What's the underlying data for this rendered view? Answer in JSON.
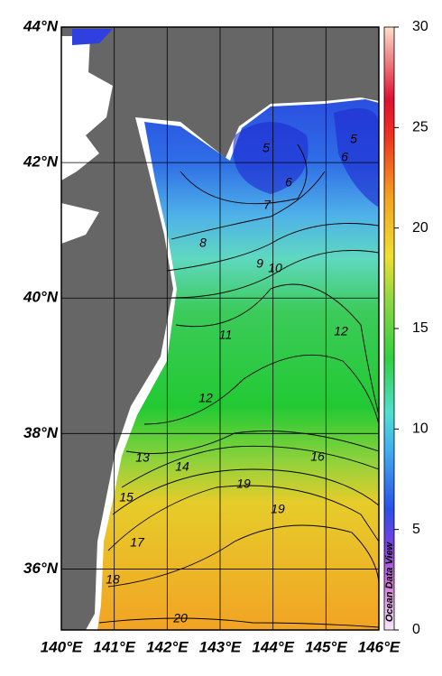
{
  "map": {
    "lon_range": [
      140,
      146
    ],
    "lat_range": [
      35.1,
      44
    ],
    "lon_ticks": [
      {
        "value": 140,
        "label": "140°E"
      },
      {
        "value": 141,
        "label": "141°E"
      },
      {
        "value": 142,
        "label": "142°E"
      },
      {
        "value": 143,
        "label": "143°E"
      },
      {
        "value": 144,
        "label": "144°E"
      },
      {
        "value": 145,
        "label": "145°E"
      },
      {
        "value": 146,
        "label": "146°E"
      }
    ],
    "lat_ticks": [
      {
        "value": 36,
        "label": "36°N"
      },
      {
        "value": 38,
        "label": "38°N"
      },
      {
        "value": 40,
        "label": "40°N"
      },
      {
        "value": 42,
        "label": "42°N"
      },
      {
        "value": 44,
        "label": "44°N"
      }
    ],
    "colorbar": {
      "range": [
        0,
        30
      ],
      "ticks": [
        0,
        5,
        10,
        15,
        20,
        25,
        30
      ]
    },
    "contour_labels": [
      5,
      5,
      6,
      6,
      7,
      8,
      9,
      10,
      11,
      12,
      12,
      13,
      14,
      15,
      16,
      17,
      18,
      19,
      19,
      20
    ],
    "watermark": "Ocean Data View"
  }
}
